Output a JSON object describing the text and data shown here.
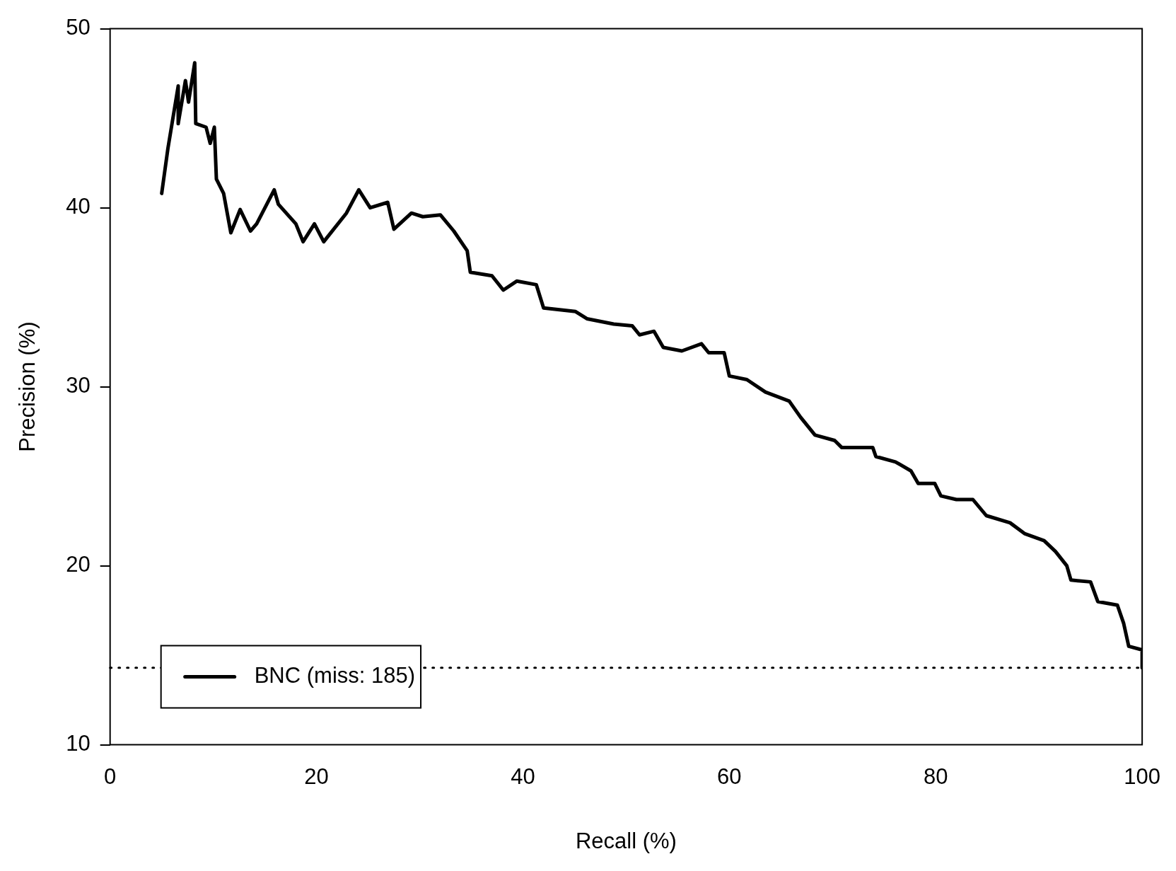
{
  "chart_data": {
    "type": "line",
    "xlabel": "Recall (%)",
    "ylabel": "Precision (%)",
    "xlim": [
      0,
      100
    ],
    "xticks": [
      0,
      20,
      40,
      60,
      80,
      100
    ],
    "ylim": [
      10,
      50
    ],
    "yticks": [
      10,
      20,
      30,
      40,
      50
    ],
    "grid": false,
    "legend": "bottom left",
    "marker": "none",
    "line_style": "solid",
    "ref_lines": [
      {
        "axis": "y",
        "value": 14.3,
        "line_style": "dotted",
        "color": "#000000"
      }
    ],
    "series": [
      {
        "name": "BNC (miss: 185)",
        "color": "#000000",
        "x": [
          5.0,
          5.6,
          6.6,
          6.6,
          7.3,
          7.6,
          8.2,
          8.3,
          9.3,
          9.7,
          10.1,
          10.3,
          11.0,
          11.7,
          12.6,
          13.6,
          14.2,
          15.9,
          16.3,
          18.0,
          18.7,
          19.8,
          20.7,
          22.9,
          24.1,
          25.2,
          26.9,
          27.5,
          29.2,
          30.3,
          32.0,
          33.3,
          34.6,
          34.9,
          37.0,
          38.1,
          39.4,
          41.3,
          42.0,
          45.1,
          46.2,
          48.8,
          50.6,
          51.3,
          52.7,
          53.6,
          55.4,
          57.3,
          58.0,
          59.5,
          60.0,
          61.7,
          63.5,
          65.8,
          66.9,
          68.3,
          70.2,
          70.9,
          73.9,
          74.2,
          76.1,
          77.6,
          78.3,
          79.9,
          80.5,
          82.0,
          83.6,
          84.9,
          87.2,
          88.6,
          90.5,
          91.6,
          92.7,
          93.1,
          95.0,
          95.7,
          97.6,
          98.2,
          98.7,
          100,
          100
        ],
        "values": [
          40.8,
          43.3,
          46.8,
          44.7,
          47.1,
          45.9,
          48.1,
          44.7,
          44.5,
          43.6,
          44.5,
          41.6,
          40.8,
          38.6,
          39.9,
          38.7,
          39.1,
          41.0,
          40.2,
          39.1,
          38.1,
          39.1,
          38.1,
          39.7,
          41.0,
          40.0,
          40.3,
          38.8,
          39.7,
          39.5,
          39.6,
          38.7,
          37.6,
          36.4,
          36.2,
          35.4,
          35.9,
          35.7,
          34.4,
          34.2,
          33.8,
          33.5,
          33.4,
          32.9,
          33.1,
          32.2,
          32.0,
          32.4,
          31.9,
          31.9,
          30.6,
          30.4,
          29.7,
          29.2,
          28.3,
          27.3,
          27.0,
          26.6,
          26.6,
          26.1,
          25.8,
          25.3,
          24.6,
          24.6,
          23.9,
          23.7,
          23.7,
          22.8,
          22.4,
          21.8,
          21.4,
          20.8,
          20.0,
          19.2,
          19.1,
          18.0,
          17.8,
          16.8,
          15.5,
          15.3,
          14.3
        ]
      }
    ]
  }
}
